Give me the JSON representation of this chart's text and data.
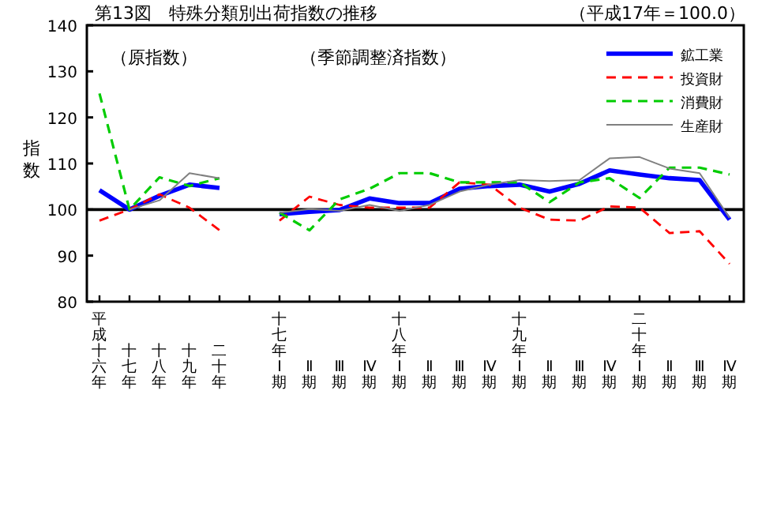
{
  "chart_data": {
    "type": "line",
    "title": "第13図　特殊分類別出荷指数の推移",
    "subtitle": "（平成17年＝100.0）",
    "ylabel": "指数",
    "annotations": [
      "（原指数）",
      "（季節調整済指数）"
    ],
    "categories": [
      "平成十六年",
      "十七年",
      "十八年",
      "十九年",
      "二十年",
      null,
      "十七年Ⅰ期",
      "Ⅱ期",
      "Ⅲ期",
      "Ⅳ期",
      "十八年Ⅰ期",
      "Ⅱ期",
      "Ⅲ期",
      "Ⅳ期",
      "十九年Ⅰ期",
      "Ⅱ期",
      "Ⅲ期",
      "Ⅳ期",
      "二十年Ⅰ期",
      "Ⅱ期",
      "Ⅲ期",
      "Ⅳ期"
    ],
    "series": [
      {
        "name": "鉱工業",
        "color": "#0000ff",
        "line_style": "solid",
        "values": [
          104.2,
          100,
          103.0,
          105.4,
          104.7,
          null,
          99.0,
          99.5,
          99.9,
          102.4,
          101.4,
          101.4,
          104.5,
          105.1,
          105.4,
          103.9,
          105.6,
          108.5,
          107.6,
          106.8,
          106.4,
          97.8
        ]
      },
      {
        "name": "投資財",
        "color": "#ff0000",
        "line_style": "dashed",
        "values": [
          97.6,
          100,
          103.3,
          100.4,
          95.5,
          null,
          97.6,
          102.8,
          101.0,
          100.4,
          100.4,
          100.4,
          105.9,
          105.4,
          100.4,
          97.8,
          97.6,
          100.7,
          100.4,
          94.9,
          95.3,
          88.2
        ]
      },
      {
        "name": "消費財",
        "color": "#00cc00",
        "line_style": "dashed",
        "values": [
          125.2,
          100,
          107.0,
          105.1,
          106.8,
          null,
          99.3,
          95.5,
          102.2,
          104.5,
          107.9,
          107.9,
          105.9,
          105.9,
          105.9,
          101.6,
          105.9,
          106.8,
          102.5,
          109.1,
          109.1,
          107.6
        ]
      },
      {
        "name": "生産財",
        "color": "#808080",
        "line_style": "solid",
        "values": [
          null,
          100,
          102.0,
          107.9,
          106.8,
          null,
          99.3,
          100.1,
          99.7,
          101.0,
          99.7,
          101.0,
          103.9,
          105.4,
          106.4,
          106.2,
          106.4,
          111.1,
          111.4,
          108.9,
          107.9,
          98.2
        ]
      }
    ],
    "ylim": [
      80,
      140
    ],
    "yticks": [
      80,
      90,
      100,
      110,
      120,
      130,
      140
    ],
    "ref_lines": [
      {
        "axis": "y",
        "value": 100,
        "color": "#000000"
      }
    ],
    "legend": "top right",
    "grid": false,
    "marker": "none"
  }
}
